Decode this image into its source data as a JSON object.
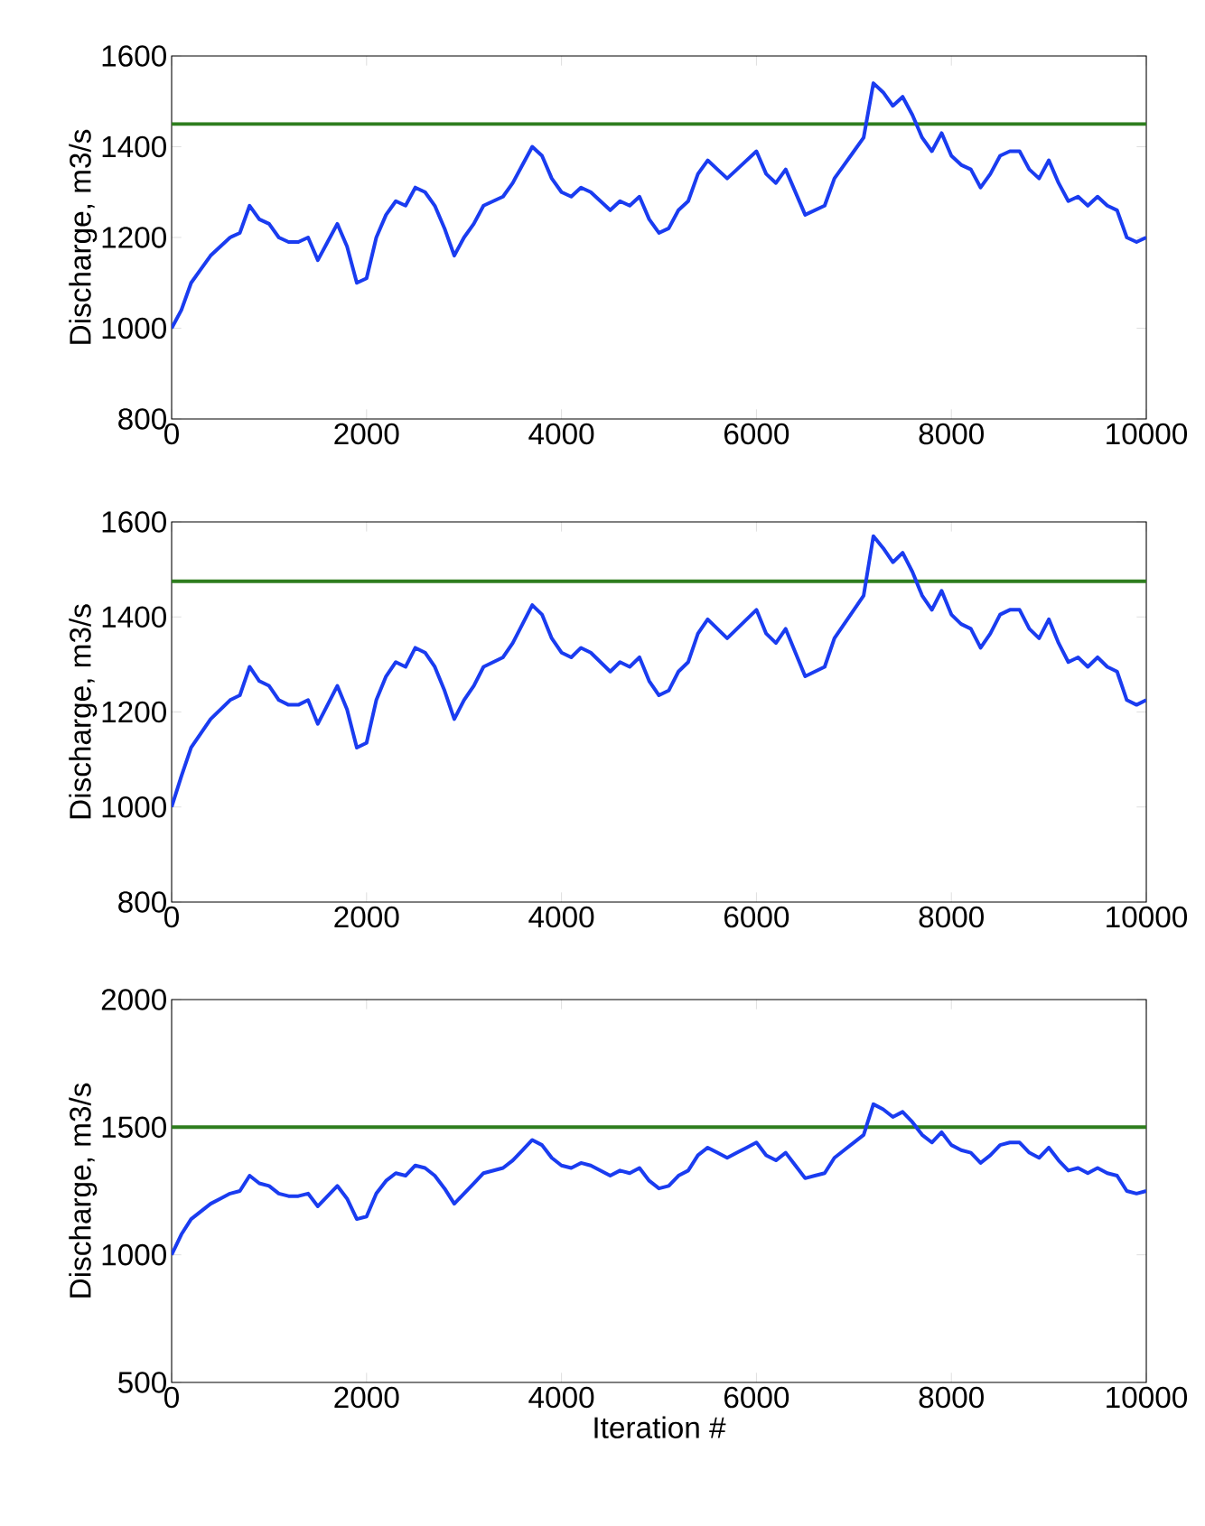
{
  "chart_data": [
    {
      "type": "line",
      "ylabel": "Discharge, m3/s",
      "x": [
        0,
        100,
        200,
        300,
        400,
        500,
        600,
        700,
        800,
        900,
        1000,
        1100,
        1200,
        1300,
        1400,
        1500,
        1600,
        1700,
        1800,
        1900,
        2000,
        2100,
        2200,
        2300,
        2400,
        2500,
        2600,
        2700,
        2800,
        2900,
        3000,
        3100,
        3200,
        3300,
        3400,
        3500,
        3600,
        3700,
        3800,
        3900,
        4000,
        4100,
        4200,
        4300,
        4400,
        4500,
        4600,
        4700,
        4800,
        4900,
        5000,
        5100,
        5200,
        5300,
        5400,
        5500,
        5600,
        5700,
        5800,
        5900,
        6000,
        6100,
        6200,
        6300,
        6400,
        6500,
        6600,
        6700,
        6800,
        6900,
        7000,
        7100,
        7200,
        7300,
        7400,
        7500,
        7600,
        7700,
        7800,
        7900,
        8000,
        8100,
        8200,
        8300,
        8400,
        8500,
        8600,
        8700,
        8800,
        8900,
        9000,
        9100,
        9200,
        9300,
        9400,
        9500,
        9600,
        9700,
        9800,
        9900,
        10000
      ],
      "series": [
        {
          "color": "#1a3cf0",
          "values": [
            1000,
            1040,
            1100,
            1130,
            1160,
            1180,
            1200,
            1210,
            1270,
            1240,
            1230,
            1200,
            1190,
            1190,
            1200,
            1150,
            1190,
            1230,
            1180,
            1100,
            1110,
            1200,
            1250,
            1280,
            1270,
            1310,
            1300,
            1270,
            1220,
            1160,
            1200,
            1230,
            1270,
            1280,
            1290,
            1320,
            1360,
            1400,
            1380,
            1330,
            1300,
            1290,
            1310,
            1300,
            1280,
            1260,
            1280,
            1270,
            1290,
            1240,
            1210,
            1220,
            1260,
            1280,
            1340,
            1370,
            1350,
            1330,
            1350,
            1370,
            1390,
            1340,
            1320,
            1350,
            1300,
            1250,
            1260,
            1270,
            1330,
            1360,
            1390,
            1420,
            1540,
            1520,
            1490,
            1510,
            1470,
            1420,
            1390,
            1430,
            1380,
            1360,
            1350,
            1310,
            1340,
            1380,
            1390,
            1390,
            1350,
            1330,
            1370,
            1320,
            1280,
            1290,
            1270,
            1290,
            1270,
            1260,
            1200,
            1190,
            1200
          ]
        }
      ],
      "ref_lines": [
        {
          "axis": "y",
          "value": 1450,
          "color": "#2e7d1e"
        }
      ],
      "xlim": [
        0,
        10000
      ],
      "ylim": [
        800,
        1600
      ],
      "xticks": [
        0,
        2000,
        4000,
        6000,
        8000,
        10000
      ],
      "yticks": [
        800,
        1000,
        1200,
        1400,
        1600
      ],
      "grid": false
    },
    {
      "type": "line",
      "ylabel": "Discharge, m3/s",
      "x": [
        0,
        100,
        200,
        300,
        400,
        500,
        600,
        700,
        800,
        900,
        1000,
        1100,
        1200,
        1300,
        1400,
        1500,
        1600,
        1700,
        1800,
        1900,
        2000,
        2100,
        2200,
        2300,
        2400,
        2500,
        2600,
        2700,
        2800,
        2900,
        3000,
        3100,
        3200,
        3300,
        3400,
        3500,
        3600,
        3700,
        3800,
        3900,
        4000,
        4100,
        4200,
        4300,
        4400,
        4500,
        4600,
        4700,
        4800,
        4900,
        5000,
        5100,
        5200,
        5300,
        5400,
        5500,
        5600,
        5700,
        5800,
        5900,
        6000,
        6100,
        6200,
        6300,
        6400,
        6500,
        6600,
        6700,
        6800,
        6900,
        7000,
        7100,
        7200,
        7300,
        7400,
        7500,
        7600,
        7700,
        7800,
        7900,
        8000,
        8100,
        8200,
        8300,
        8400,
        8500,
        8600,
        8700,
        8800,
        8900,
        9000,
        9100,
        9200,
        9300,
        9400,
        9500,
        9600,
        9700,
        9800,
        9900,
        10000
      ],
      "series": [
        {
          "color": "#1a3cf0",
          "values": [
            1000,
            1065,
            1125,
            1155,
            1185,
            1205,
            1225,
            1235,
            1295,
            1265,
            1255,
            1225,
            1215,
            1215,
            1225,
            1175,
            1215,
            1255,
            1205,
            1125,
            1135,
            1225,
            1275,
            1305,
            1295,
            1335,
            1325,
            1295,
            1245,
            1185,
            1225,
            1255,
            1295,
            1305,
            1315,
            1345,
            1385,
            1425,
            1405,
            1355,
            1325,
            1315,
            1335,
            1325,
            1305,
            1285,
            1305,
            1295,
            1315,
            1265,
            1235,
            1245,
            1285,
            1305,
            1365,
            1395,
            1375,
            1355,
            1375,
            1395,
            1415,
            1365,
            1345,
            1375,
            1325,
            1275,
            1285,
            1295,
            1355,
            1385,
            1415,
            1445,
            1570,
            1545,
            1515,
            1535,
            1495,
            1445,
            1415,
            1455,
            1405,
            1385,
            1375,
            1335,
            1365,
            1405,
            1415,
            1415,
            1375,
            1355,
            1395,
            1345,
            1305,
            1315,
            1295,
            1315,
            1295,
            1285,
            1225,
            1215,
            1225
          ]
        }
      ],
      "ref_lines": [
        {
          "axis": "y",
          "value": 1475,
          "color": "#2e7d1e"
        }
      ],
      "xlim": [
        0,
        10000
      ],
      "ylim": [
        800,
        1600
      ],
      "xticks": [
        0,
        2000,
        4000,
        6000,
        8000,
        10000
      ],
      "yticks": [
        800,
        1000,
        1200,
        1400,
        1600
      ],
      "grid": false
    },
    {
      "type": "line",
      "ylabel": "Discharge, m3/s",
      "xlabel": "Iteration #",
      "x": [
        0,
        100,
        200,
        300,
        400,
        500,
        600,
        700,
        800,
        900,
        1000,
        1100,
        1200,
        1300,
        1400,
        1500,
        1600,
        1700,
        1800,
        1900,
        2000,
        2100,
        2200,
        2300,
        2400,
        2500,
        2600,
        2700,
        2800,
        2900,
        3000,
        3100,
        3200,
        3300,
        3400,
        3500,
        3600,
        3700,
        3800,
        3900,
        4000,
        4100,
        4200,
        4300,
        4400,
        4500,
        4600,
        4700,
        4800,
        4900,
        5000,
        5100,
        5200,
        5300,
        5400,
        5500,
        5600,
        5700,
        5800,
        5900,
        6000,
        6100,
        6200,
        6300,
        6400,
        6500,
        6600,
        6700,
        6800,
        6900,
        7000,
        7100,
        7200,
        7300,
        7400,
        7500,
        7600,
        7700,
        7800,
        7900,
        8000,
        8100,
        8200,
        8300,
        8400,
        8500,
        8600,
        8700,
        8800,
        8900,
        9000,
        9100,
        9200,
        9300,
        9400,
        9500,
        9600,
        9700,
        9800,
        9900,
        10000
      ],
      "series": [
        {
          "color": "#1a3cf0",
          "values": [
            1000,
            1080,
            1140,
            1170,
            1200,
            1220,
            1240,
            1250,
            1310,
            1280,
            1270,
            1240,
            1230,
            1230,
            1240,
            1190,
            1230,
            1270,
            1220,
            1140,
            1150,
            1240,
            1290,
            1320,
            1310,
            1350,
            1340,
            1310,
            1260,
            1200,
            1240,
            1280,
            1320,
            1330,
            1340,
            1370,
            1410,
            1450,
            1430,
            1380,
            1350,
            1340,
            1360,
            1350,
            1330,
            1310,
            1330,
            1320,
            1340,
            1290,
            1260,
            1270,
            1310,
            1330,
            1390,
            1420,
            1400,
            1380,
            1400,
            1420,
            1440,
            1390,
            1370,
            1400,
            1350,
            1300,
            1310,
            1320,
            1380,
            1410,
            1440,
            1470,
            1590,
            1570,
            1540,
            1560,
            1520,
            1470,
            1440,
            1480,
            1430,
            1410,
            1400,
            1360,
            1390,
            1430,
            1440,
            1440,
            1400,
            1380,
            1420,
            1370,
            1330,
            1340,
            1320,
            1340,
            1320,
            1310,
            1250,
            1240,
            1250
          ]
        }
      ],
      "ref_lines": [
        {
          "axis": "y",
          "value": 1500,
          "color": "#2e7d1e"
        }
      ],
      "xlim": [
        0,
        10000
      ],
      "ylim": [
        500,
        2000
      ],
      "xticks": [
        0,
        2000,
        4000,
        6000,
        8000,
        10000
      ],
      "yticks": [
        500,
        1000,
        1500,
        2000
      ],
      "grid": false
    }
  ]
}
